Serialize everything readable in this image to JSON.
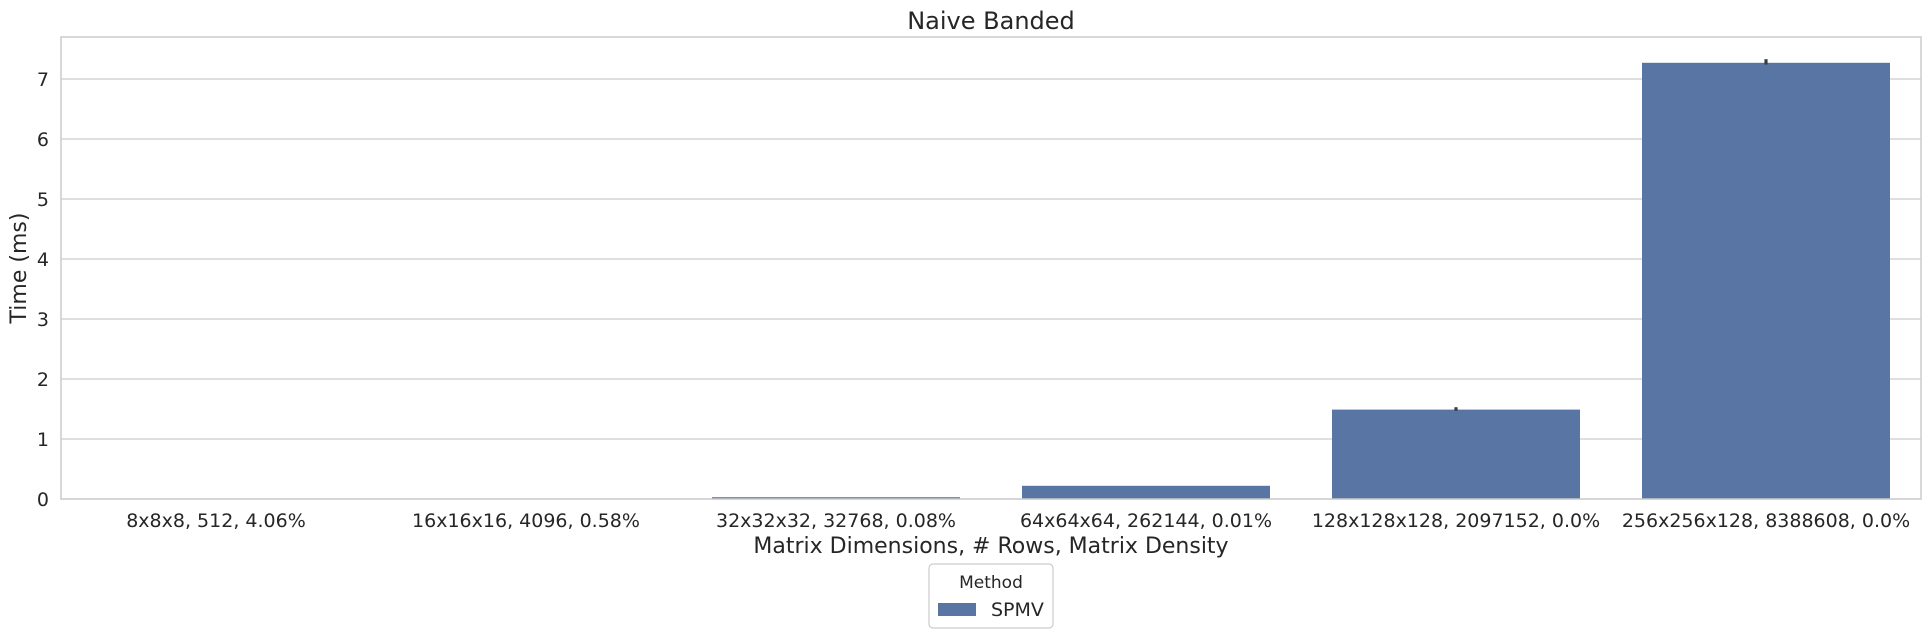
{
  "chart_data": {
    "type": "bar",
    "title": "Naive Banded",
    "xlabel": "Matrix Dimensions, # Rows, Matrix Density",
    "ylabel": "Time (ms)",
    "ylim": [
      0,
      7.7
    ],
    "yticks": [
      0,
      1,
      2,
      3,
      4,
      5,
      6,
      7
    ],
    "grid": "horizontal",
    "categories": [
      "8x8x8, 512, 4.06%",
      "16x16x16, 4096, 0.58%",
      "32x32x32, 32768, 0.08%",
      "64x64x64, 262144, 0.01%",
      "128x128x128, 2097152, 0.0%",
      "256x256x128, 8388608, 0.0%"
    ],
    "series": [
      {
        "name": "SPMV",
        "color": "#5975a4",
        "values": [
          0.002,
          0.005,
          0.03,
          0.22,
          1.49,
          7.27
        ],
        "error_low": [
          0.002,
          0.005,
          0.03,
          0.22,
          1.47,
          7.24
        ],
        "error_high": [
          0.002,
          0.005,
          0.03,
          0.22,
          1.53,
          7.33
        ]
      }
    ],
    "legend": {
      "title": "Method",
      "placement": "bottom-center"
    }
  }
}
